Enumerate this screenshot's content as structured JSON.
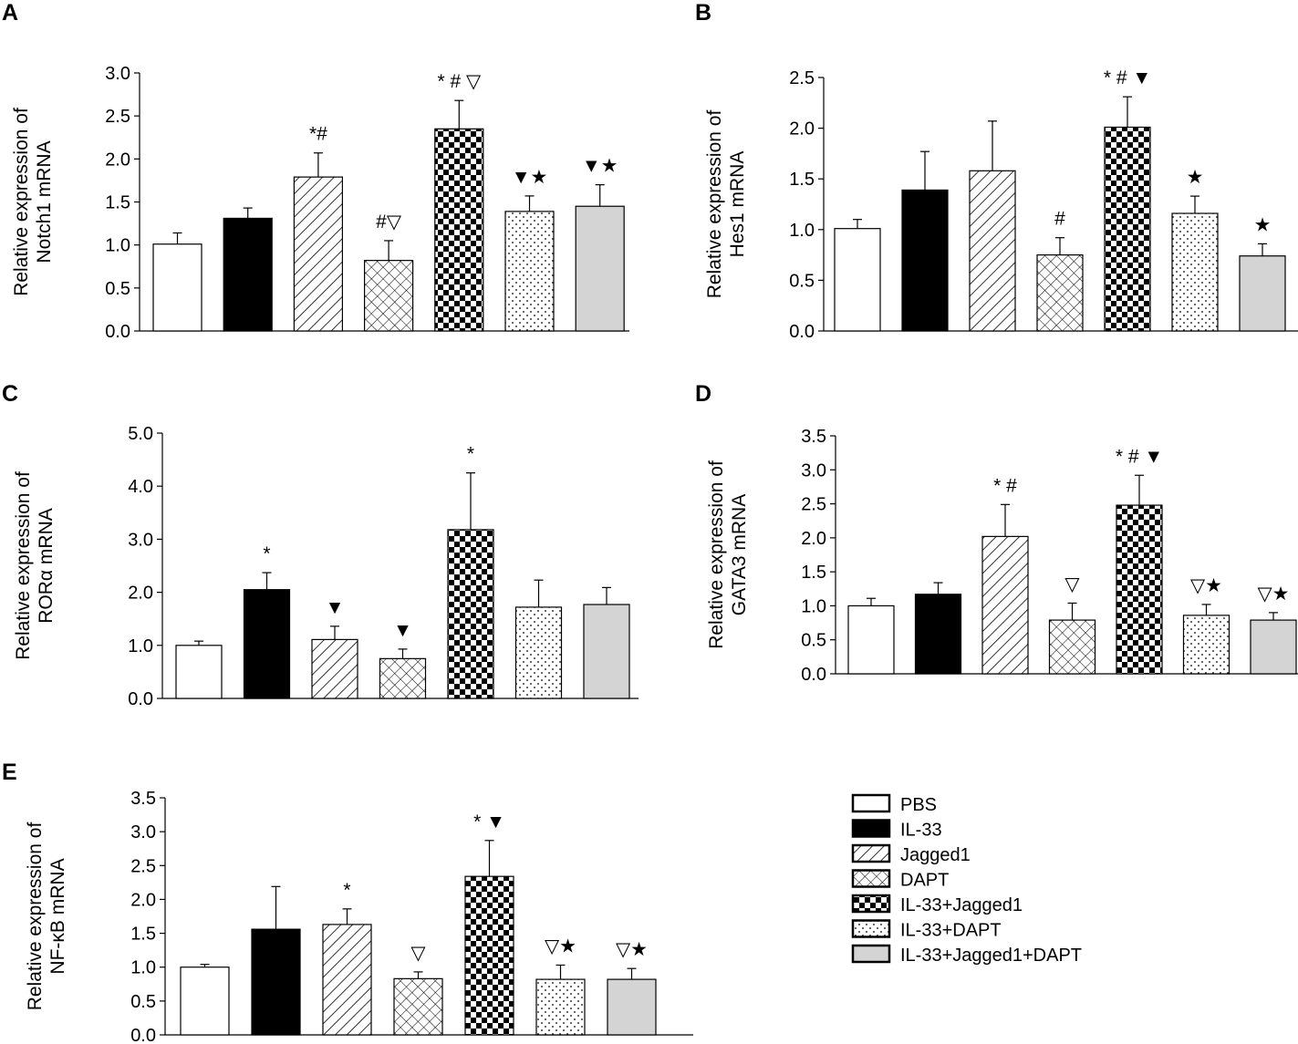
{
  "groups": [
    "PBS",
    "IL-33",
    "Jagged1",
    "DAPT",
    "IL-33+Jagged1",
    "IL-33+DAPT",
    "IL-33+Jagged1+DAPT"
  ],
  "group_patterns": [
    "white",
    "black",
    "diagonal",
    "crosshatch",
    "checker",
    "dots",
    "gray"
  ],
  "colors": {
    "gray_fill": "#d4d4d4",
    "axis": "#000000"
  },
  "chart_data": [
    {
      "type": "bar",
      "letter": "A",
      "ylabel": [
        "Relative expression of",
        "Notch1 mRNA"
      ],
      "ylim": [
        0,
        3.0
      ],
      "yticks": [
        "0.0",
        "0.5",
        "1.0",
        "1.5",
        "2.0",
        "2.5",
        "3.0"
      ],
      "categories": [
        "PBS",
        "IL-33",
        "Jagged1",
        "DAPT",
        "IL-33+Jagged1",
        "IL-33+DAPT",
        "IL-33+Jagged1+DAPT"
      ],
      "values": [
        1.01,
        1.31,
        1.79,
        0.82,
        2.35,
        1.39,
        1.45
      ],
      "errors": [
        0.13,
        0.12,
        0.28,
        0.23,
        0.33,
        0.18,
        0.25
      ],
      "annotations": [
        "",
        "",
        "*#",
        "#▽",
        "* # ▽",
        "▼★",
        "▼★"
      ]
    },
    {
      "type": "bar",
      "letter": "B",
      "ylabel": [
        "Relative expression of",
        "Hes1 mRNA"
      ],
      "ylim": [
        0,
        2.5
      ],
      "yticks": [
        "0.0",
        "0.5",
        "1.0",
        "1.5",
        "2.0",
        "2.5"
      ],
      "categories": [
        "PBS",
        "IL-33",
        "Jagged1",
        "DAPT",
        "IL-33+Jagged1",
        "IL-33+DAPT",
        "IL-33+Jagged1+DAPT"
      ],
      "values": [
        1.01,
        1.39,
        1.58,
        0.75,
        2.01,
        1.16,
        0.74
      ],
      "errors": [
        0.09,
        0.38,
        0.49,
        0.17,
        0.3,
        0.17,
        0.12
      ],
      "annotations": [
        "",
        "",
        "",
        "#",
        "* # ▼",
        "★",
        "★"
      ]
    },
    {
      "type": "bar",
      "letter": "C",
      "ylabel": [
        "Relative expression of",
        "RORα mRNA"
      ],
      "ylim": [
        0,
        5.0
      ],
      "yticks": [
        "0.0",
        "1.0",
        "2.0",
        "3.0",
        "4.0",
        "5.0"
      ],
      "categories": [
        "PBS",
        "IL-33",
        "Jagged1",
        "DAPT",
        "IL-33+Jagged1",
        "IL-33+DAPT",
        "IL-33+Jagged1+DAPT"
      ],
      "values": [
        1.0,
        2.05,
        1.11,
        0.75,
        3.18,
        1.72,
        1.77
      ],
      "errors": [
        0.08,
        0.32,
        0.25,
        0.18,
        1.07,
        0.51,
        0.32
      ],
      "annotations": [
        "",
        "*",
        "▼",
        "▼",
        "*",
        "",
        ""
      ]
    },
    {
      "type": "bar",
      "letter": "D",
      "ylabel": [
        "Relative expression of",
        "GATA3 mRNA"
      ],
      "ylim": [
        0,
        3.5
      ],
      "yticks": [
        "0.0",
        "0.5",
        "1.0",
        "1.5",
        "2.0",
        "2.5",
        "3.0",
        "3.5"
      ],
      "categories": [
        "PBS",
        "IL-33",
        "Jagged1",
        "DAPT",
        "IL-33+Jagged1",
        "IL-33+DAPT",
        "IL-33+Jagged1+DAPT"
      ],
      "values": [
        1.0,
        1.17,
        2.02,
        0.79,
        2.48,
        0.86,
        0.79
      ],
      "errors": [
        0.11,
        0.17,
        0.47,
        0.25,
        0.44,
        0.16,
        0.11
      ],
      "annotations": [
        "",
        "",
        "* #",
        "▽",
        "* # ▼",
        "▽★",
        "▽★"
      ]
    },
    {
      "type": "bar",
      "letter": "E",
      "ylabel": [
        "Relative expression of",
        "NF-κB mRNA"
      ],
      "ylim": [
        0,
        3.5
      ],
      "yticks": [
        "0.0",
        "0.5",
        "1.0",
        "1.5",
        "2.0",
        "2.5",
        "3.0",
        "3.5"
      ],
      "categories": [
        "PBS",
        "IL-33",
        "Jagged1",
        "DAPT",
        "IL-33+Jagged1",
        "IL-33+DAPT",
        "IL-33+Jagged1+DAPT"
      ],
      "values": [
        1.0,
        1.56,
        1.63,
        0.83,
        2.34,
        0.82,
        0.82
      ],
      "errors": [
        0.04,
        0.63,
        0.23,
        0.1,
        0.53,
        0.21,
        0.16
      ],
      "annotations": [
        "",
        "",
        "*",
        "▽",
        "* ▼",
        "▽★",
        "▽★"
      ]
    }
  ]
}
